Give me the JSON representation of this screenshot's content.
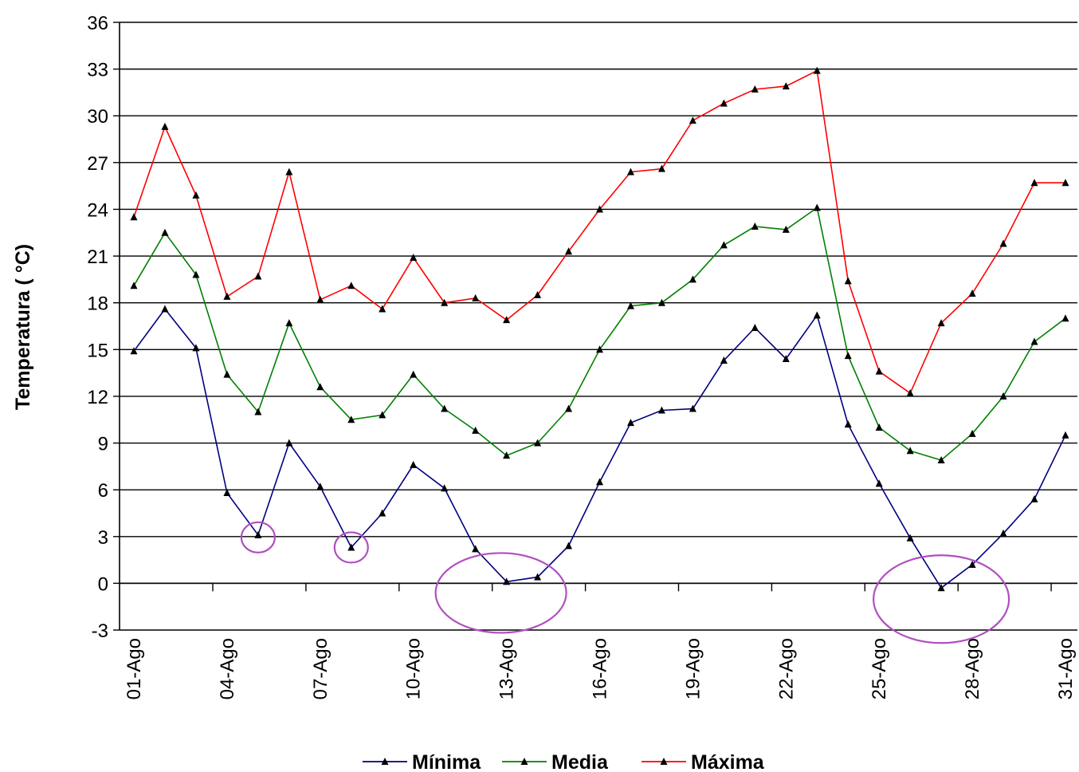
{
  "chart_data": {
    "type": "line",
    "title": "",
    "xlabel": "",
    "ylabel": "Temperatura ( °C)",
    "ylim": [
      -3,
      36
    ],
    "yticks": [
      -3,
      0,
      3,
      6,
      9,
      12,
      15,
      18,
      21,
      24,
      27,
      30,
      33,
      36
    ],
    "grid": true,
    "legend_position": "bottom",
    "x": [
      "01-Ago",
      "02-Ago",
      "03-Ago",
      "04-Ago",
      "05-Ago",
      "06-Ago",
      "07-Ago",
      "08-Ago",
      "09-Ago",
      "10-Ago",
      "11-Ago",
      "12-Ago",
      "13-Ago",
      "14-Ago",
      "15-Ago",
      "16-Ago",
      "17-Ago",
      "18-Ago",
      "19-Ago",
      "20-Ago",
      "21-Ago",
      "22-Ago",
      "23-Ago",
      "24-Ago",
      "25-Ago",
      "26-Ago",
      "27-Ago",
      "28-Ago",
      "29-Ago",
      "30-Ago",
      "31-Ago"
    ],
    "xtick_labels": [
      "01-Ago",
      "04-Ago",
      "07-Ago",
      "10-Ago",
      "13-Ago",
      "16-Ago",
      "19-Ago",
      "22-Ago",
      "25-Ago",
      "28-Ago",
      "31-Ago"
    ],
    "series": [
      {
        "name": "Mínima",
        "color": "#000080",
        "values": [
          14.9,
          17.6,
          15.1,
          5.8,
          3.1,
          9.0,
          6.2,
          2.3,
          4.5,
          7.6,
          6.1,
          2.2,
          0.1,
          0.4,
          2.4,
          6.5,
          10.3,
          11.1,
          11.2,
          14.3,
          16.4,
          14.4,
          17.2,
          10.2,
          6.4,
          2.9,
          -0.3,
          1.2,
          3.2,
          5.4,
          9.5
        ]
      },
      {
        "name": "Media",
        "color": "#008000",
        "values": [
          19.1,
          22.5,
          19.8,
          13.4,
          11.0,
          16.7,
          12.6,
          10.5,
          10.8,
          13.4,
          11.2,
          9.8,
          8.2,
          9.0,
          11.2,
          15.0,
          17.8,
          18.0,
          19.5,
          21.7,
          22.9,
          22.7,
          24.1,
          14.6,
          10.0,
          8.5,
          7.9,
          9.6,
          12.0,
          15.5,
          17.0
        ]
      },
      {
        "name": "Máxima",
        "color": "#ff0000",
        "values": [
          23.5,
          29.3,
          24.9,
          18.4,
          19.7,
          26.4,
          18.2,
          19.1,
          17.6,
          20.9,
          18.0,
          18.3,
          16.9,
          18.5,
          21.3,
          24.0,
          26.4,
          26.6,
          29.7,
          30.8,
          31.7,
          31.9,
          32.9,
          19.4,
          13.6,
          12.2,
          16.7,
          18.6,
          21.8,
          25.7,
          25.7
        ]
      }
    ],
    "annotations": [
      {
        "shape": "ellipse",
        "color": "#b04fc0",
        "note": "circled minimum",
        "x": "05-Ago"
      },
      {
        "shape": "ellipse",
        "color": "#b04fc0",
        "note": "circled minimum",
        "x": "08-Ago"
      },
      {
        "shape": "ellipse",
        "color": "#b04fc0",
        "note": "circled minimum",
        "x": "13-Ago"
      },
      {
        "shape": "ellipse",
        "color": "#b04fc0",
        "note": "circled minimum",
        "x": "27-Ago"
      }
    ]
  }
}
